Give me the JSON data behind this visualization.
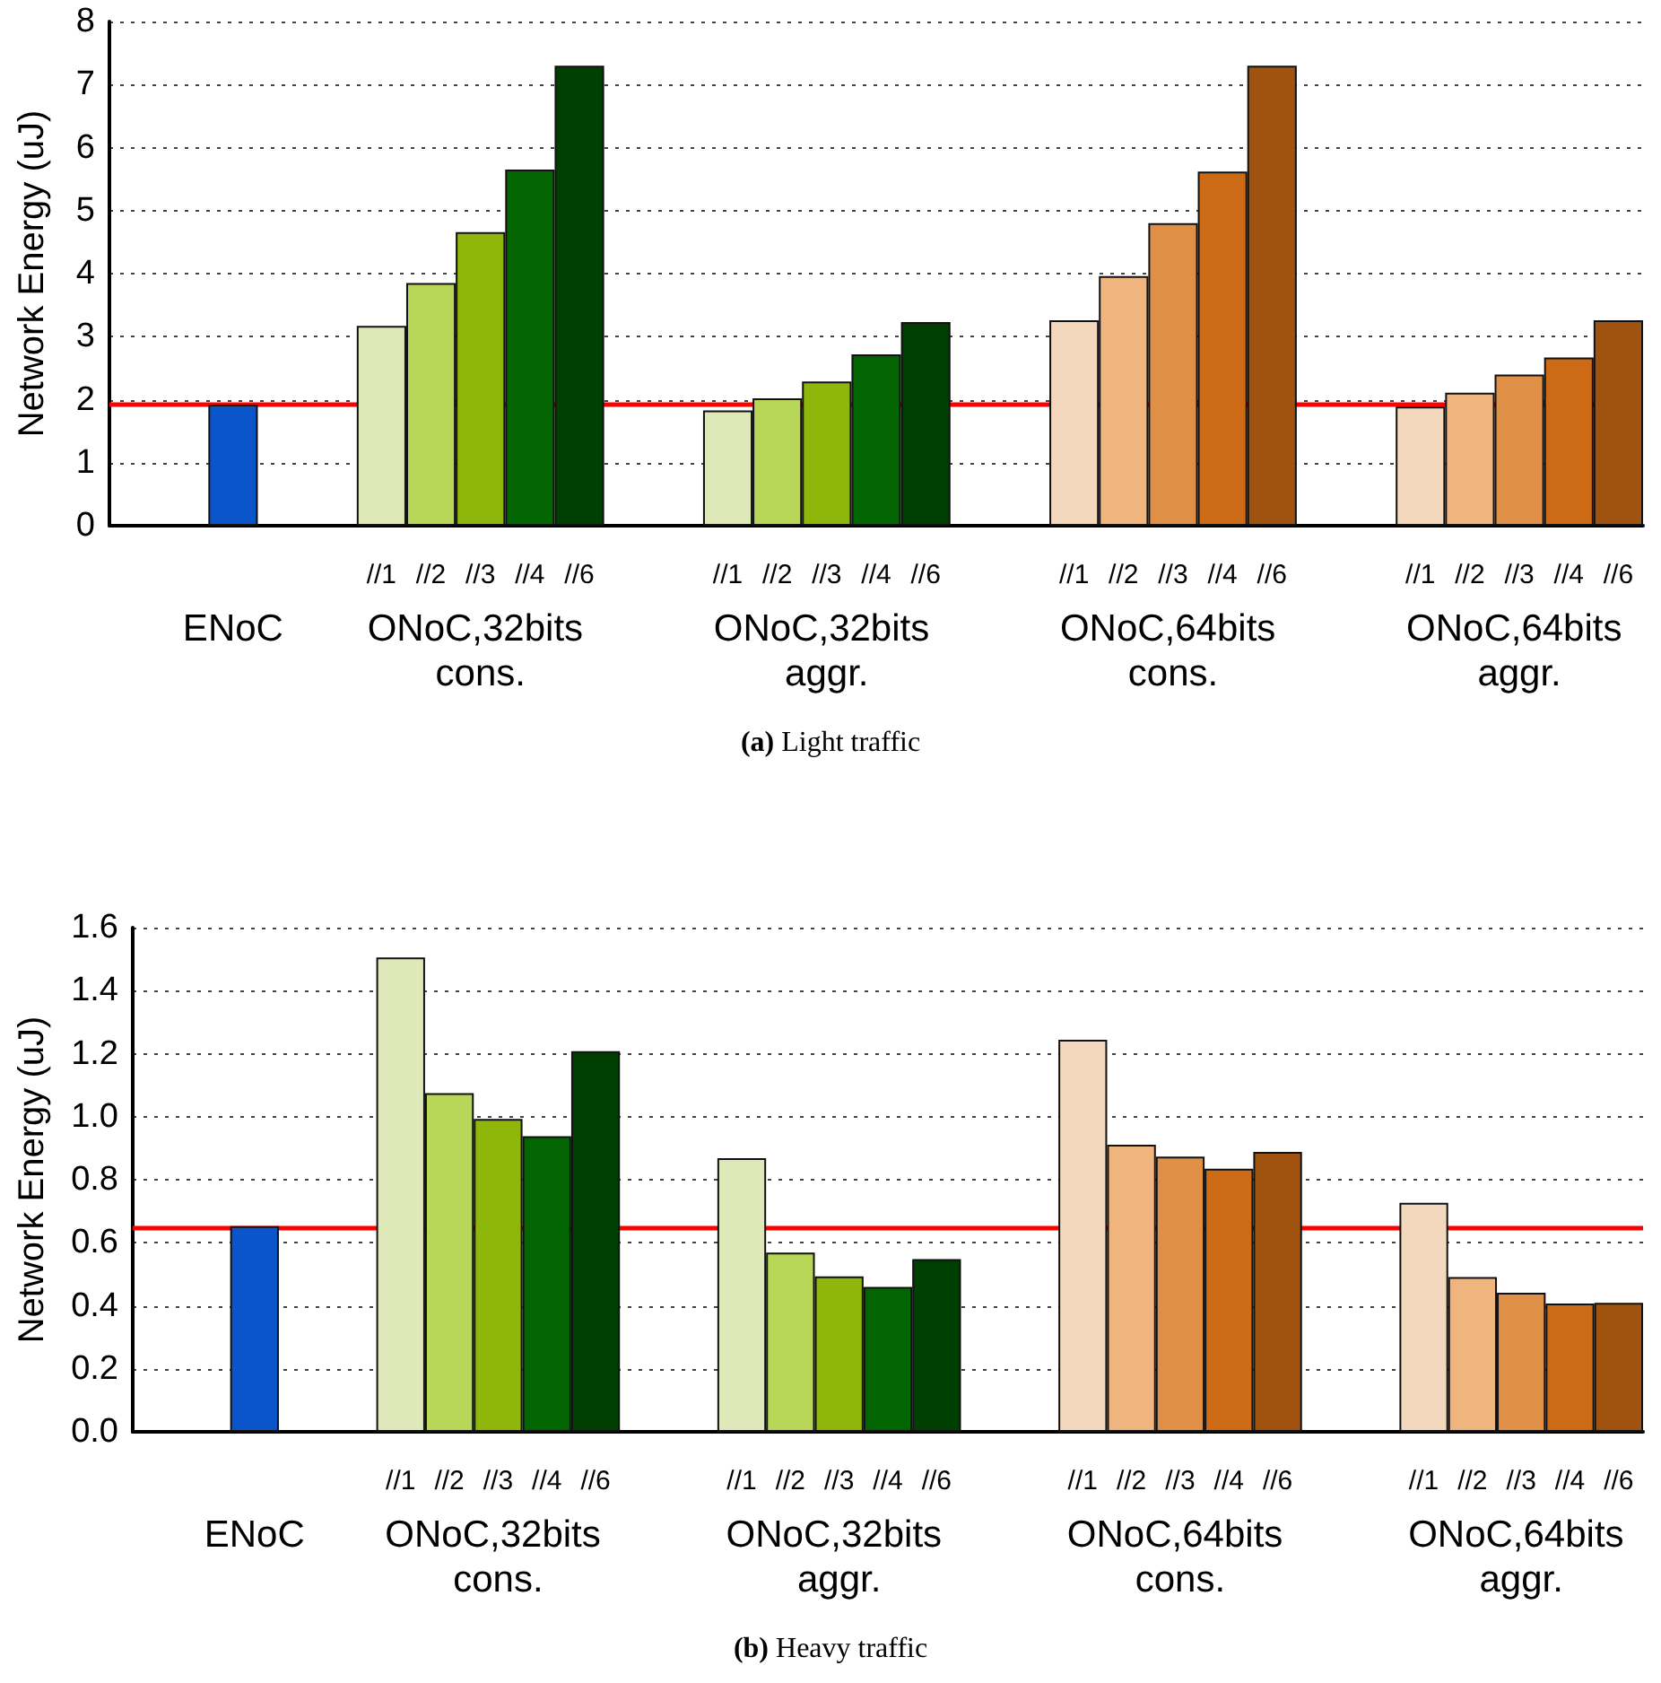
{
  "chart_data": [
    {
      "type": "bar",
      "title": "(a) Light traffic",
      "ylabel": "Network Energy (uJ)",
      "categories": [
        null,
        null,
        null,
        null,
        null,
        "//1",
        "//2",
        "//3",
        "//4",
        "//6",
        null,
        null,
        "//1",
        "//2",
        "//3",
        "//4",
        "//6",
        null,
        null,
        "//1",
        "//2",
        "//3",
        "//4",
        "//6",
        null,
        null,
        "//1",
        "//2",
        "//3",
        "//4",
        "//6"
      ],
      "values": [
        null,
        null,
        1.92,
        null,
        null,
        3.17,
        3.85,
        4.66,
        5.65,
        7.3,
        null,
        null,
        1.83,
        2.02,
        2.29,
        2.72,
        3.23,
        null,
        null,
        3.26,
        3.96,
        4.8,
        5.62,
        7.3,
        null,
        null,
        1.89,
        2.11,
        2.4,
        2.67,
        3.26
      ],
      "colors": [
        null,
        null,
        "#0b55cb",
        null,
        null,
        "#dfe8b8",
        "#b8d759",
        "#8fb70b",
        "#026502",
        "#003f02",
        null,
        null,
        "#dfe8b8",
        "#b8d759",
        "#8fb70b",
        "#026502",
        "#003f02",
        null,
        null,
        "#f4d8bd",
        "#f0b57f",
        "#e08f46",
        "#cc6a15",
        "#a0530e",
        null,
        null,
        "#f4d8bd",
        "#f0b57f",
        "#e08f46",
        "#cc6a15",
        "#a0530e"
      ],
      "annotations": [
        "ENoC",
        "ONoC,32bits cons.",
        "ONoC,32bits aggr.",
        "ONoC,64bits cons.",
        "ONoC,64bits aggr."
      ],
      "ylim": [
        0,
        8
      ],
      "yticks": [
        0,
        1,
        2,
        3,
        4,
        5,
        6,
        7,
        8
      ],
      "grid": "y",
      "ref_lines": [
        {
          "axis": "y",
          "value": 1.92,
          "label": null,
          "color": "#ff0000"
        }
      ]
    },
    {
      "type": "bar",
      "title": "(b) Heavy traffic",
      "ylabel": "Network Energy (uJ)",
      "categories": [
        null,
        null,
        null,
        null,
        null,
        "//1",
        "//2",
        "//3",
        "//4",
        "//6",
        null,
        null,
        "//1",
        "//2",
        "//3",
        "//4",
        "//6",
        null,
        null,
        "//1",
        "//2",
        "//3",
        "//4",
        "//6",
        null,
        null,
        "//1",
        "//2",
        "//3",
        "//4",
        "//6"
      ],
      "values": [
        null,
        null,
        0.653,
        null,
        null,
        1.505,
        1.075,
        0.993,
        0.938,
        1.208,
        null,
        null,
        0.868,
        0.569,
        0.493,
        0.46,
        0.548,
        null,
        null,
        1.244,
        0.911,
        0.873,
        0.835,
        0.888,
        null,
        null,
        0.727,
        0.491,
        0.441,
        0.407,
        0.409
      ],
      "colors": [
        null,
        null,
        "#0b55cb",
        null,
        null,
        "#dfe8b8",
        "#b8d759",
        "#8fb70b",
        "#026502",
        "#003f02",
        null,
        null,
        "#dfe8b8",
        "#b8d759",
        "#8fb70b",
        "#026502",
        "#003f02",
        null,
        null,
        "#f4d8bd",
        "#f0b57f",
        "#e08f46",
        "#cc6a15",
        "#a0530e",
        null,
        null,
        "#f4d8bd",
        "#f0b57f",
        "#e08f46",
        "#cc6a15",
        "#a0530e"
      ],
      "annotations": [
        "ENoC",
        "ONoC,32bits cons.",
        "ONoC,32bits aggr.",
        "ONoC,64bits cons.",
        "ONoC,64bits aggr."
      ],
      "ylim": [
        0,
        1.6
      ],
      "yticks": [
        {
          "value": 0,
          "label": "0.0"
        },
        {
          "value": 0.2,
          "label": "0.2"
        },
        {
          "value": 0.4,
          "label": "0.4"
        },
        {
          "value": 0.6,
          "label": "0.6"
        },
        {
          "value": 0.8,
          "label": "0.8"
        },
        {
          "value": 1,
          "label": "1.0"
        },
        {
          "value": 1.2,
          "label": "1.2"
        },
        {
          "value": 1.4,
          "label": "1.4"
        },
        {
          "value": 1.6,
          "label": "1.6"
        }
      ],
      "grid": "y",
      "ref_lines": [
        {
          "axis": "y",
          "value": 0.653,
          "label": null,
          "color": "#ff0000"
        }
      ]
    }
  ]
}
